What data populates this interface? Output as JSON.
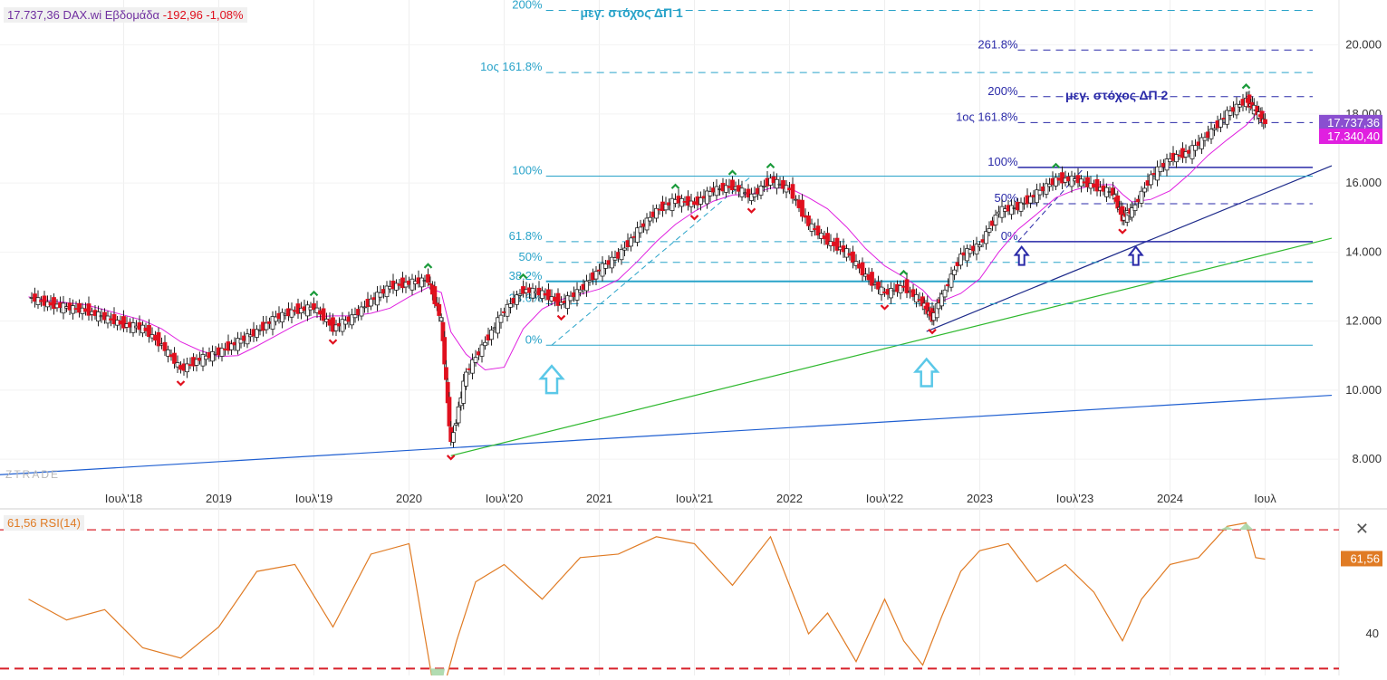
{
  "header": {
    "price": "17.737,36",
    "name": "DAX.wi Εβδομάδα",
    "change": "-192,96 -1,08%"
  },
  "rsi_header": "61,56 RSI(14)",
  "watermark": "ZTRADE",
  "colors": {
    "bull_candle": "#ffffff",
    "bear_candle": "#e0101e",
    "ma_line": "#e020e0",
    "rsi_line": "#e07b24",
    "fib_lines_1": "#29a3c9",
    "fib_lines_2": "#2a2aa8",
    "trend_green": "#2eb82e",
    "trend_blue": "#1f5fd1",
    "arrow_up": "#5bc8e8",
    "rsi_level": "#d8202a"
  },
  "icons": [
    "up-arrow-icon",
    "close-icon",
    "green-chevron-up-icon",
    "red-chevron-down-icon"
  ],
  "chart_data": [
    {
      "type": "line",
      "title": "DAX.wi Εβδομάδα",
      "subtitle": "candlestick",
      "x_ticks": [
        "Ιουλ'18",
        "2019",
        "Ιουλ'19",
        "2020",
        "Ιουλ'20",
        "2021",
        "Ιουλ'21",
        "2022",
        "Ιουλ'22",
        "2023",
        "Ιουλ'23",
        "2024",
        "Ιουλ"
      ],
      "y_ticks": [
        "8.000",
        "10.000",
        "12.000",
        "14.000",
        "16.000",
        "18.000",
        "20.000"
      ],
      "ylim": [
        7400,
        21300
      ],
      "last_price_label": "17.737,36",
      "ma_label": "17.340,40",
      "series": [
        {
          "name": "close",
          "x": [
            2018.0,
            2018.1,
            2018.2,
            2018.3,
            2018.4,
            2018.5,
            2018.6,
            2018.7,
            2018.8,
            2018.9,
            2019.0,
            2019.1,
            2019.2,
            2019.3,
            2019.4,
            2019.5,
            2019.6,
            2019.7,
            2019.8,
            2019.9,
            2020.0,
            2020.1,
            2020.17,
            2020.22,
            2020.3,
            2020.4,
            2020.5,
            2020.6,
            2020.7,
            2020.8,
            2020.9,
            2021.0,
            2021.1,
            2021.2,
            2021.3,
            2021.4,
            2021.5,
            2021.6,
            2021.7,
            2021.8,
            2021.9,
            2022.0,
            2022.1,
            2022.2,
            2022.3,
            2022.4,
            2022.5,
            2022.6,
            2022.7,
            2022.75,
            2022.8,
            2022.9,
            2023.0,
            2023.1,
            2023.2,
            2023.3,
            2023.4,
            2023.5,
            2023.6,
            2023.7,
            2023.75,
            2023.8,
            2023.9,
            2024.0,
            2024.1,
            2024.2,
            2024.3,
            2024.4,
            2024.45,
            2024.5
          ],
          "values": [
            12700,
            12500,
            12400,
            12300,
            12100,
            11900,
            11800,
            11300,
            10600,
            10900,
            11100,
            11400,
            11700,
            12100,
            12300,
            12400,
            11800,
            12100,
            12600,
            13000,
            13100,
            13200,
            12000,
            8450,
            10500,
            11400,
            12300,
            12900,
            12800,
            12500,
            12900,
            13500,
            13900,
            14600,
            15200,
            15500,
            15400,
            15800,
            15900,
            15600,
            16100,
            15800,
            14800,
            14300,
            14000,
            13300,
            12800,
            13000,
            12500,
            12100,
            12700,
            13900,
            14200,
            15200,
            15300,
            15700,
            16100,
            16100,
            15900,
            15700,
            15000,
            15200,
            16200,
            16700,
            16900,
            17400,
            18000,
            18400,
            18100,
            17737
          ]
        }
      ],
      "fib_set_1": [
        {
          "label": "0%",
          "value": 11300
        },
        {
          "label": "23.6%",
          "value": 12500
        },
        {
          "label": "38.2%",
          "value": 13150
        },
        {
          "label": "50%",
          "value": 13700
        },
        {
          "label": "61.8%",
          "value": 14300
        },
        {
          "label": "100%",
          "value": 16200
        },
        {
          "label": "1ος 161.8%",
          "value": 19200
        },
        {
          "label": "200%",
          "value": 21000
        }
      ],
      "fib_set_2": [
        {
          "label": "0%",
          "value": 14300
        },
        {
          "label": "50%",
          "value": 15400
        },
        {
          "label": "100%",
          "value": 16450
        },
        {
          "label": "1ος 161.8%",
          "value": 17750
        },
        {
          "label": "200%",
          "value": 18500
        },
        {
          "label": "261.8%",
          "value": 19850
        }
      ],
      "annotations": [
        "μεγ. στόχος ΔΠ 1",
        "μεγ. στόχος ΔΠ 2"
      ]
    },
    {
      "type": "line",
      "title": "RSI(14)",
      "y_ticks": [
        "40"
      ],
      "value_label": "61,56",
      "levels": [
        70,
        30
      ],
      "series": [
        {
          "name": "RSI(14)",
          "x": [
            2018.0,
            2018.2,
            2018.4,
            2018.6,
            2018.8,
            2019.0,
            2019.2,
            2019.4,
            2019.6,
            2019.8,
            2020.0,
            2020.15,
            2020.25,
            2020.35,
            2020.5,
            2020.7,
            2020.9,
            2021.1,
            2021.3,
            2021.5,
            2021.7,
            2021.9,
            2022.1,
            2022.2,
            2022.35,
            2022.5,
            2022.6,
            2022.7,
            2022.8,
            2022.9,
            2023.0,
            2023.15,
            2023.3,
            2023.45,
            2023.6,
            2023.75,
            2023.85,
            2024.0,
            2024.15,
            2024.3,
            2024.4,
            2024.45,
            2024.5
          ],
          "values": [
            50,
            44,
            47,
            36,
            33,
            42,
            58,
            60,
            42,
            63,
            66,
            18,
            38,
            55,
            60,
            50,
            62,
            63,
            68,
            66,
            54,
            68,
            40,
            46,
            32,
            50,
            38,
            31,
            45,
            58,
            64,
            66,
            55,
            60,
            52,
            38,
            50,
            60,
            62,
            71,
            72,
            62,
            61.56
          ]
        }
      ],
      "ylim": [
        28,
        75
      ]
    }
  ]
}
